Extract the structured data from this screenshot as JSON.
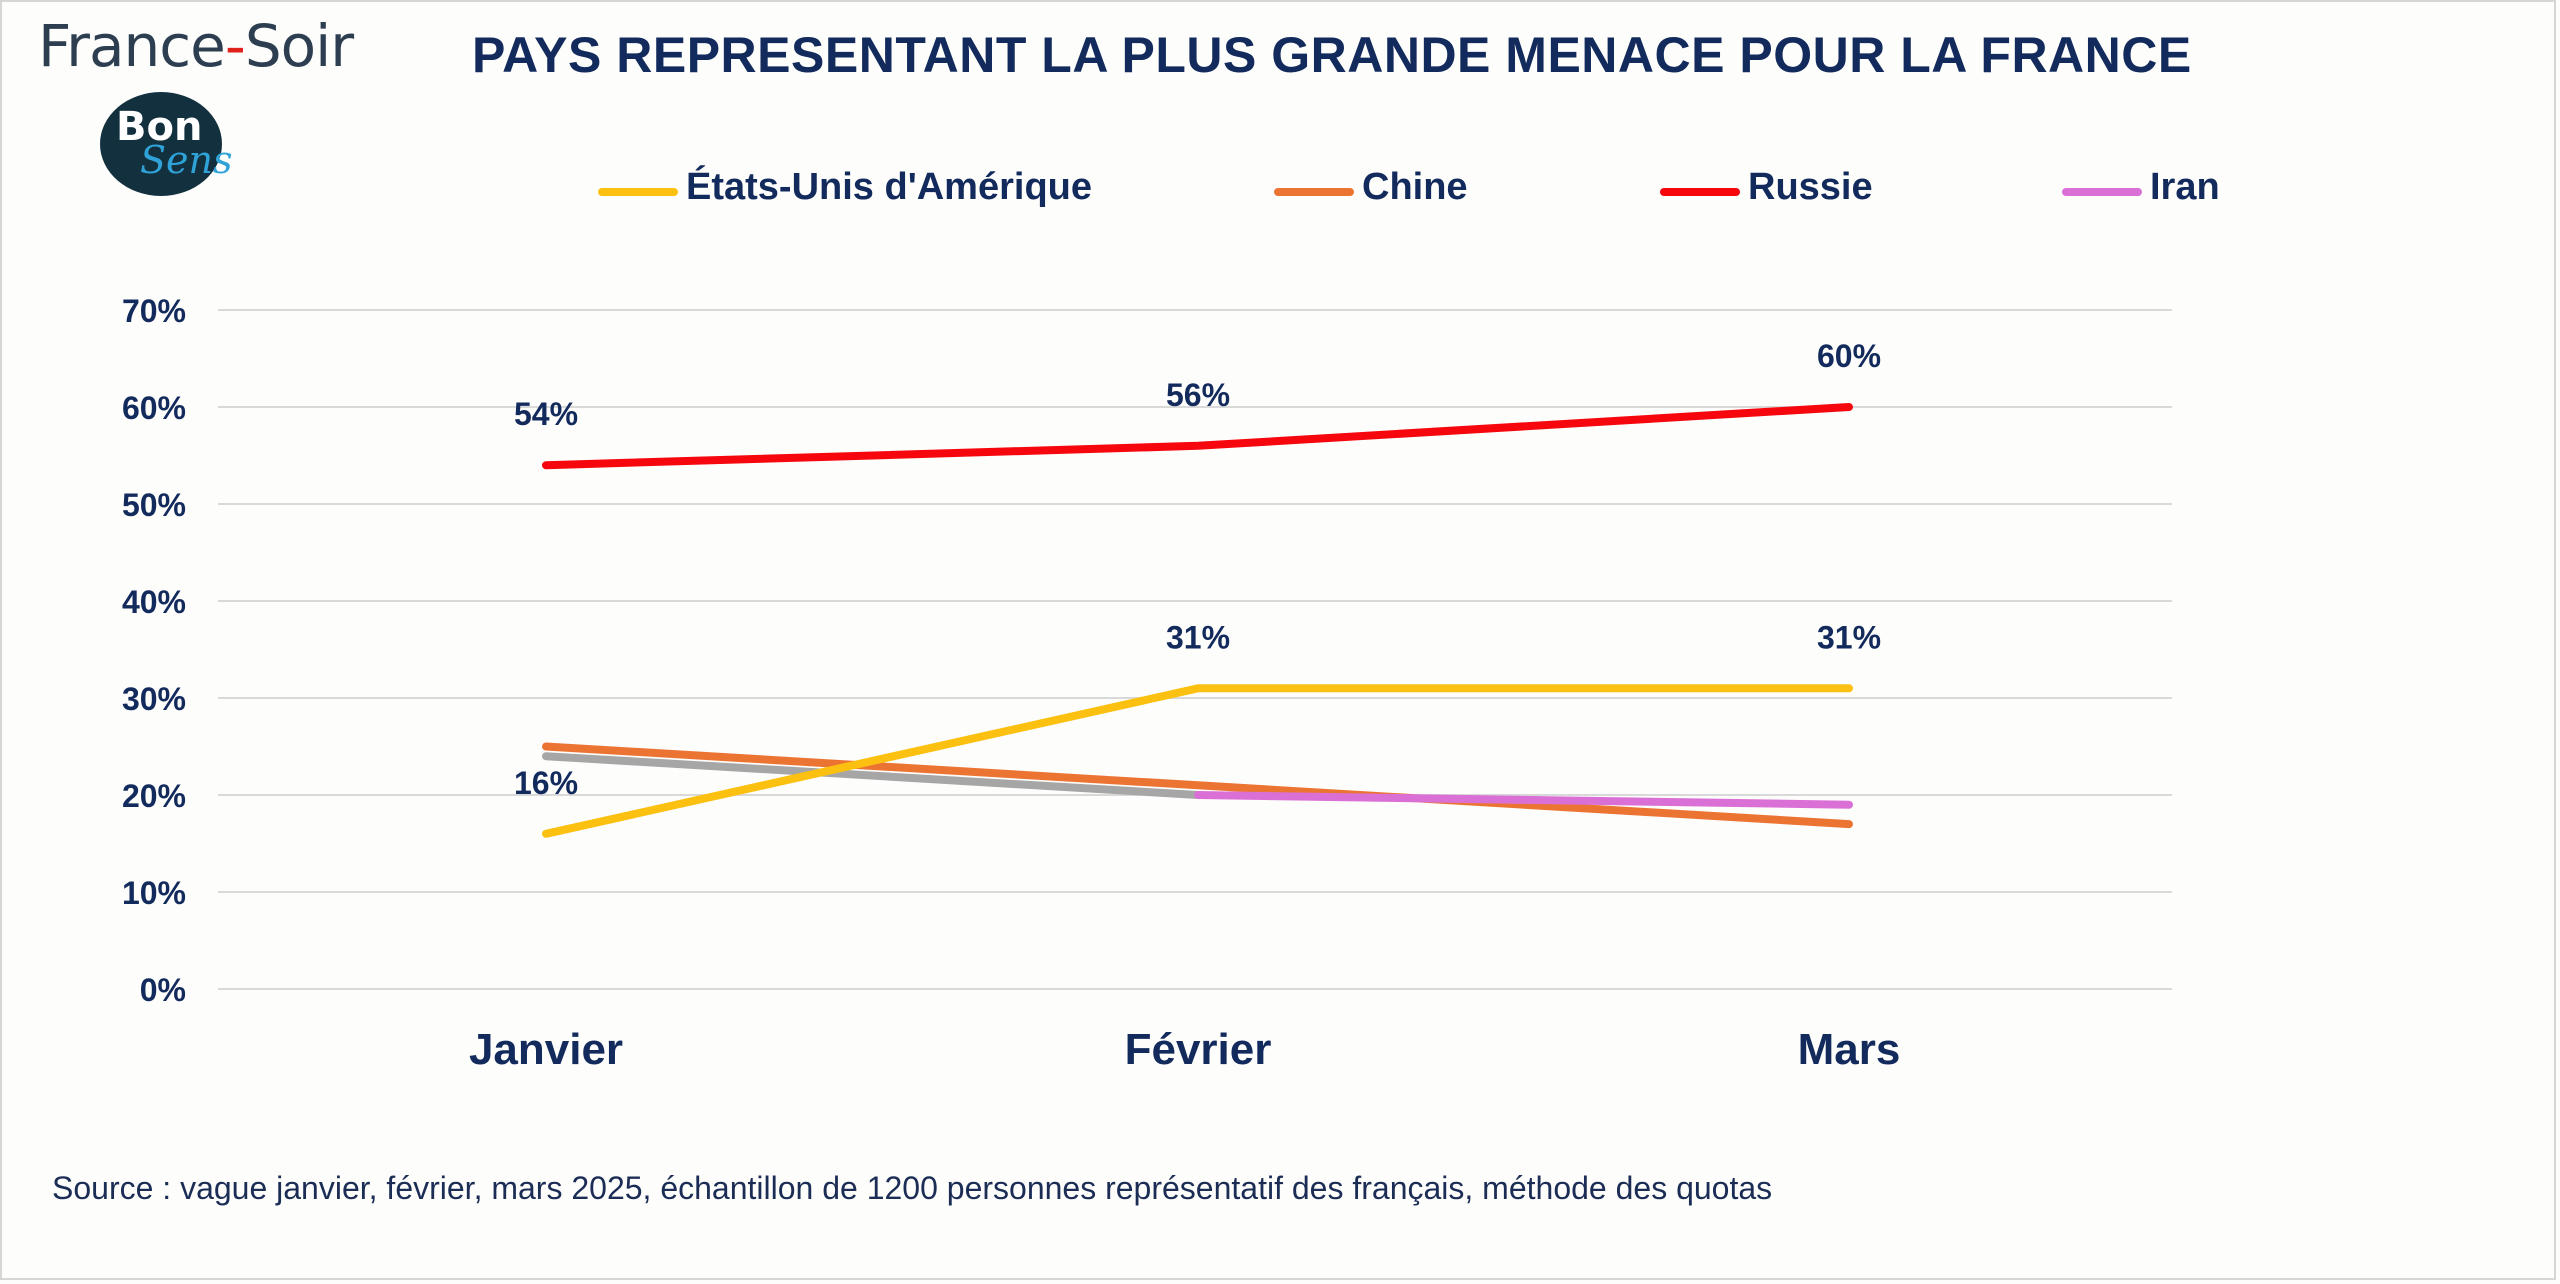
{
  "brand": {
    "name_left": "France",
    "name_sep": "-",
    "name_right": "Soir",
    "badge_line1": "Bon",
    "badge_line2": "Sens"
  },
  "chart_data": {
    "type": "line",
    "title": "PAYS REPRESENTANT LA PLUS GRANDE MENACE POUR LA FRANCE",
    "categories": [
      "Janvier",
      "Février",
      "Mars"
    ],
    "ylim": [
      0,
      70
    ],
    "yticks": [
      "0%",
      "10%",
      "20%",
      "30%",
      "40%",
      "50%",
      "60%",
      "70%"
    ],
    "grid": true,
    "legend_position": "top",
    "series": [
      {
        "name": "États-Unis d'Amérique",
        "color": "#fcc010",
        "values": [
          16,
          31,
          31
        ],
        "labels": [
          "16%",
          "31%",
          "31%"
        ]
      },
      {
        "name": "Chine",
        "color": "#ec7433",
        "values": [
          25,
          21,
          17
        ],
        "labels": []
      },
      {
        "name": "Russie",
        "color": "#f5070d",
        "values": [
          54,
          56,
          60
        ],
        "labels": [
          "54%",
          "56%",
          "60%"
        ]
      },
      {
        "name": "Iran",
        "color": "#da70d6",
        "values": [
          null,
          20,
          19
        ],
        "labels": []
      },
      {
        "name": "",
        "color": "#a6a6a6",
        "values": [
          24,
          20,
          null
        ],
        "labels": []
      }
    ]
  },
  "source": "Source : vague janvier, février, mars 2025, échantillon de 1200 personnes représentatif des français, méthode des quotas"
}
